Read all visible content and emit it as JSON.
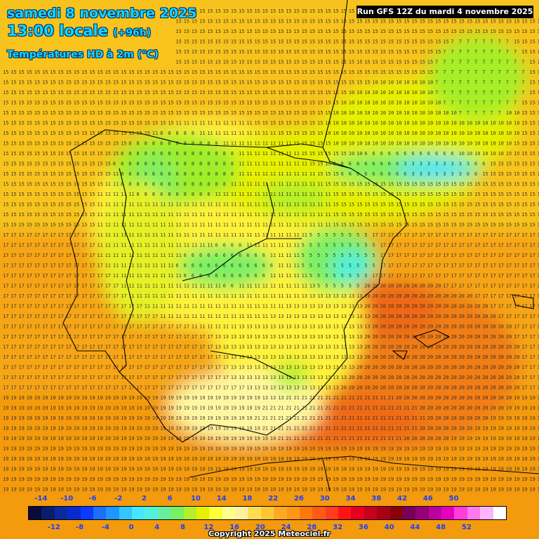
{
  "header": {
    "date": "samedi 8 novembre 2025",
    "time": "13:00 locale",
    "lead": "(+96h)",
    "variable": "Températures HD à 2m (°C)",
    "run": "Run GFS 12Z du mardi 4 novembre 2025"
  },
  "legend": {
    "top_labels": [
      "-14",
      "-10",
      "-6",
      "-2",
      "2",
      "6",
      "10",
      "14",
      "18",
      "22",
      "26",
      "30",
      "34",
      "38",
      "42",
      "46",
      "50"
    ],
    "bottom_labels": [
      "-12",
      "-8",
      "-4",
      "0",
      "4",
      "8",
      "12",
      "16",
      "20",
      "24",
      "28",
      "32",
      "36",
      "40",
      "44",
      "48",
      "52"
    ],
    "colors": [
      "#0a0a3c",
      "#0a1e6e",
      "#0a2aa0",
      "#0a2ad0",
      "#0a3cff",
      "#1e6eff",
      "#1e96ff",
      "#32c8ff",
      "#46e6ff",
      "#50f0dc",
      "#64f0a0",
      "#78f064",
      "#b4f028",
      "#e6f000",
      "#ffff3c",
      "#ffff8c",
      "#fff0a0",
      "#ffdc50",
      "#ffc832",
      "#ffaa1e",
      "#ff9614",
      "#ff780a",
      "#ff5a14",
      "#ff3c1e",
      "#ff1414",
      "#e6001e",
      "#c8001e",
      "#aa0014",
      "#8c000a",
      "#78005a",
      "#960078",
      "#be00a0",
      "#e600be",
      "#ff3cdc",
      "#ff78f0",
      "#ffb4ff",
      "#ffffff"
    ]
  },
  "copyright": "Copyright 2025 Meteociel.fr"
}
